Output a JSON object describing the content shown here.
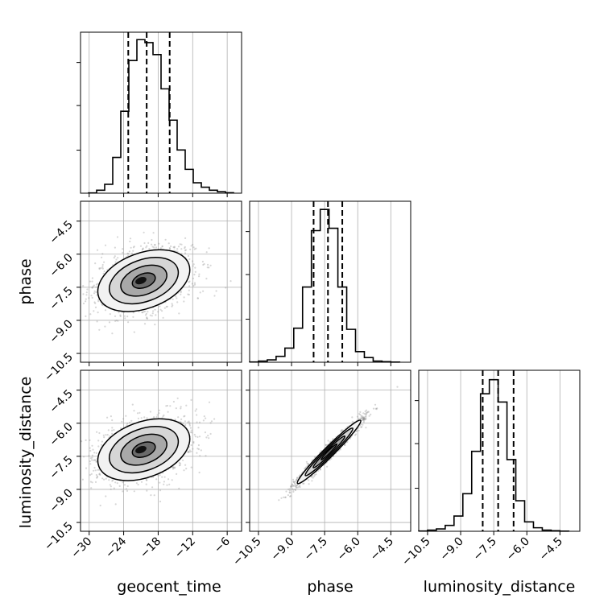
{
  "chart_data": {
    "type": "corner",
    "parameters": [
      "geocent_time",
      "phase",
      "luminosity_distance"
    ],
    "axis_labels": {
      "x": [
        "geocent_time",
        "phase",
        "luminosity_distance"
      ],
      "y": [
        "phase",
        "luminosity_distance"
      ]
    },
    "ranges": {
      "geocent_time": [
        -31.5,
        -3.5
      ],
      "phase": [
        -10.9,
        -3.6
      ],
      "luminosity_distance": [
        -10.9,
        -3.6
      ]
    },
    "ticks": {
      "geocent_time": [
        "-30",
        "-24",
        "-18",
        "-12",
        "-6"
      ],
      "phase": [
        "-10.5",
        "-9.0",
        "-7.5",
        "-6.0",
        "-4.5"
      ],
      "luminosity_distance": [
        "-10.5",
        "-9.0",
        "-7.5",
        "-6.0",
        "-4.5"
      ]
    },
    "grid": true,
    "histograms": [
      {
        "parameter": "geocent_time",
        "bin_edges": [
          -30.1,
          -28.7,
          -27.3,
          -25.9,
          -24.5,
          -23.1,
          -21.7,
          -20.3,
          -18.9,
          -17.5,
          -16.1,
          -14.7,
          -13.3,
          -11.9,
          -10.5,
          -9.1,
          -7.7,
          -6.3,
          -4.9
        ],
        "counts": [
          0.2,
          2,
          6,
          24,
          55,
          89,
          103,
          101,
          93,
          70,
          49,
          29,
          16,
          7,
          4,
          2,
          1,
          0.3
        ],
        "ylim": [
          0,
          108
        ],
        "quantiles": [
          -23.2,
          -20.0,
          -16.0
        ]
      },
      {
        "parameter": "phase",
        "bin_edges": [
          -10.9,
          -10.5,
          -10.1,
          -9.7,
          -9.3,
          -8.9,
          -8.5,
          -8.1,
          -7.7,
          -7.3,
          -6.9,
          -6.5,
          -6.1,
          -5.7,
          -5.3,
          -4.9,
          -4.5,
          -4.1
        ],
        "counts": [
          0.2,
          1,
          2,
          5,
          12,
          29,
          64,
          112,
          130,
          114,
          64,
          28,
          9,
          4,
          1,
          0.5,
          0.1
        ],
        "ylim": [
          0,
          137
        ],
        "quantiles": [
          -8.0,
          -7.35,
          -6.7
        ]
      },
      {
        "parameter": "luminosity_distance",
        "bin_edges": [
          -10.9,
          -10.5,
          -10.1,
          -9.7,
          -9.3,
          -8.9,
          -8.5,
          -8.1,
          -7.7,
          -7.3,
          -6.9,
          -6.5,
          -6.1,
          -5.7,
          -5.3,
          -4.9,
          -4.5,
          -4.1
        ],
        "counts": [
          0.2,
          1,
          2,
          5,
          13,
          32,
          68,
          117,
          129,
          110,
          61,
          26,
          8,
          3,
          1,
          0.5,
          0.1
        ],
        "ylim": [
          0,
          137
        ],
        "quantiles": [
          -8.0,
          -7.3,
          -6.6
        ]
      }
    ],
    "joint_distributions": [
      {
        "x": "geocent_time",
        "y": "phase",
        "center": [
          -20.5,
          -7.2
        ],
        "sd": [
          4.0,
          0.7
        ],
        "corr": 0.35,
        "peak": [
          -21.0,
          -7.2
        ]
      },
      {
        "x": "geocent_time",
        "y": "luminosity_distance",
        "center": [
          -20.5,
          -7.2
        ],
        "sd": [
          4.0,
          0.7
        ],
        "corr": 0.35,
        "peak": [
          -21.0,
          -7.2
        ]
      },
      {
        "x": "phase",
        "y": "luminosity_distance",
        "center": [
          -7.3,
          -7.3
        ],
        "sd": [
          0.72,
          0.72
        ],
        "corr": 0.975,
        "peak": [
          -7.3,
          -7.2
        ]
      }
    ],
    "contour_levels_sigma": [
      0.5,
      1.0,
      1.5,
      2.0
    ]
  },
  "colors": {
    "hist_line": "#000000",
    "quantile_line": "#000000",
    "grid": "#b0b0b0",
    "scatter": "#8c8c8c",
    "density_fill": [
      "#f2f2f2",
      "#d6d6d6",
      "#a8a8a8",
      "#6a6a6a",
      "#111111"
    ]
  }
}
